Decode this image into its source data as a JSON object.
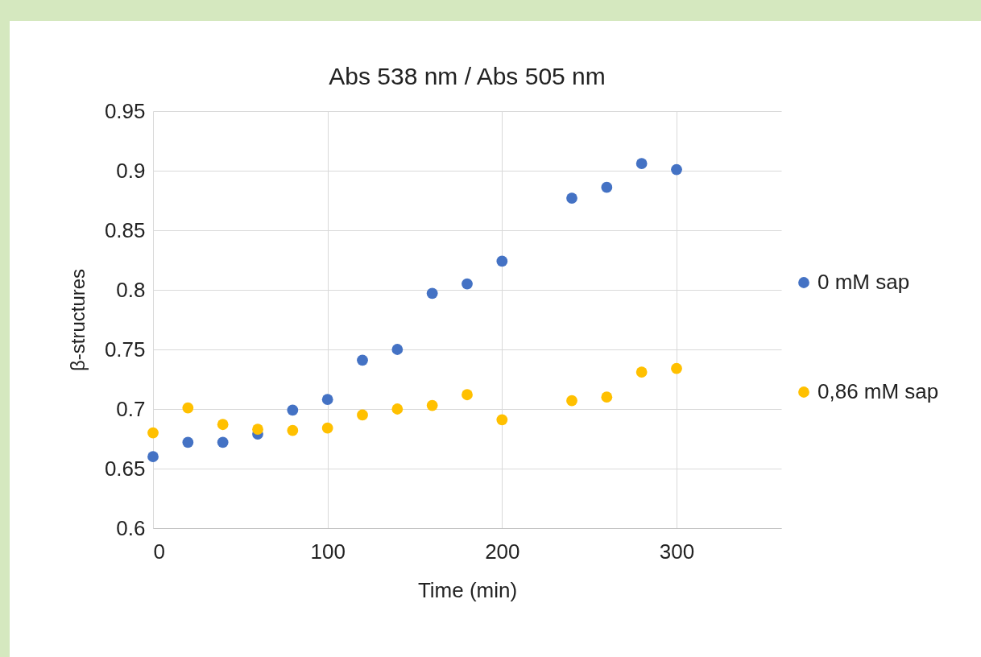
{
  "chart_data": {
    "type": "scatter",
    "title": "Abs 538 nm / Abs 505 nm",
    "xlabel": "Time (min)",
    "ylabel": "β-structures",
    "x": [
      0,
      20,
      40,
      60,
      80,
      100,
      120,
      140,
      160,
      180,
      200,
      240,
      260,
      280,
      300
    ],
    "series": [
      {
        "name": "0 mM sap",
        "color": "#4472c4",
        "values": [
          0.66,
          0.672,
          0.672,
          0.679,
          0.699,
          0.708,
          0.741,
          0.75,
          0.797,
          0.805,
          0.824,
          0.877,
          0.886,
          0.906,
          0.901
        ]
      },
      {
        "name": "0,86 mM sap",
        "color": "#ffc000",
        "values": [
          0.68,
          0.701,
          0.687,
          0.683,
          0.682,
          0.684,
          0.695,
          0.7,
          0.703,
          0.712,
          0.691,
          0.707,
          0.71,
          0.731,
          0.734
        ]
      }
    ],
    "xlim": [
      0,
      360
    ],
    "xticks": [
      0,
      100,
      200,
      300
    ],
    "ylim": [
      0.6,
      0.95
    ],
    "yticks": [
      0.6,
      0.65,
      0.7,
      0.75,
      0.8,
      0.85,
      0.9,
      0.95
    ],
    "grid": true,
    "legend": "right",
    "marker": "circle"
  }
}
